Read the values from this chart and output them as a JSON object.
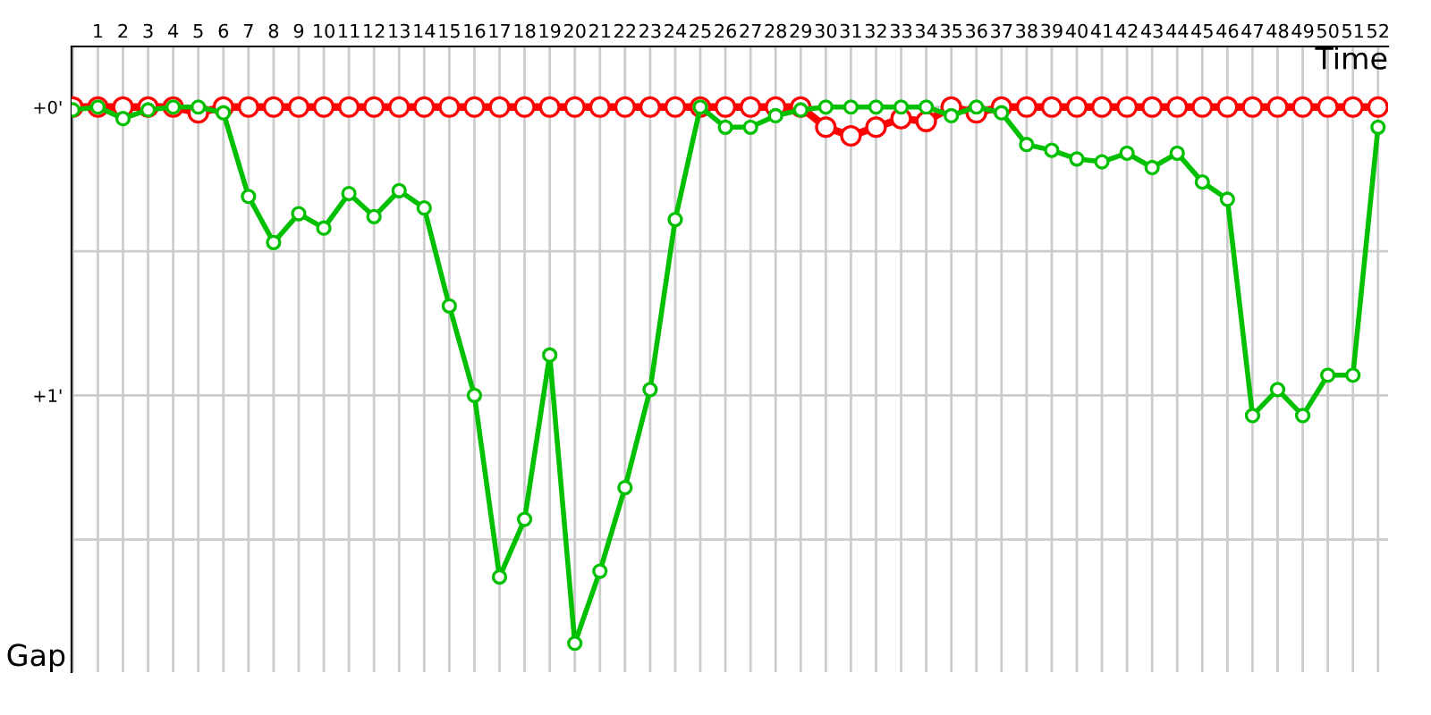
{
  "chart_data": {
    "type": "line",
    "xlabel": "Time",
    "ylabel": "Gap",
    "categories": [
      null,
      "1",
      "2",
      "3",
      "4",
      "5",
      "6",
      "7",
      "8",
      "9",
      "10",
      "11",
      "12",
      "13",
      "14",
      "15",
      "16",
      "17",
      "18",
      "19",
      "20",
      "21",
      "22",
      "23",
      "24",
      "25",
      "26",
      "27",
      "28",
      "29",
      "30",
      "31",
      "32",
      "33",
      "34",
      "35",
      "36",
      "37",
      "38",
      "39",
      "40",
      "41",
      "42",
      "43",
      "44",
      "45",
      "46",
      "47",
      "48",
      "49",
      "50",
      "51",
      "52"
    ],
    "series": [
      {
        "color": "#ff0000",
        "values": [
          0,
          0,
          0,
          0,
          0,
          0.02,
          0,
          0,
          0,
          0,
          0,
          0,
          0,
          0,
          0,
          0,
          0,
          0,
          0,
          0,
          0,
          0,
          0,
          0,
          0,
          0,
          0,
          0,
          0,
          0,
          0.07,
          0.1,
          0.07,
          0.04,
          0.05,
          0,
          0.02,
          0,
          0,
          0,
          0,
          0,
          0,
          0,
          0,
          0,
          0,
          0,
          0,
          0,
          0,
          0,
          0
        ]
      },
      {
        "color": "#00c000",
        "values": [
          0.01,
          0,
          0.04,
          0.01,
          0,
          0,
          0.02,
          0.31,
          0.47,
          0.37,
          0.42,
          0.3,
          0.38,
          0.29,
          0.35,
          0.69,
          1.0,
          1.63,
          1.43,
          0.86,
          1.86,
          1.61,
          1.32,
          0.98,
          0.39,
          0,
          0.07,
          0.07,
          0.03,
          0.01,
          0,
          0,
          0,
          0,
          0,
          0.03,
          0,
          0.02,
          0.13,
          0.15,
          0.18,
          0.19,
          0.16,
          0.21,
          0.16,
          0.26,
          0.32,
          1.07,
          0.98,
          1.07,
          0.93,
          0.93,
          0.07
        ]
      }
    ],
    "ylim": [
      1.96,
      -0.21
    ],
    "yticks": [
      {
        "value": 0,
        "label": "+0'"
      },
      {
        "value": 0.5,
        "label": null
      },
      {
        "value": 1,
        "label": "+1'"
      },
      {
        "value": 1.5,
        "label": null
      }
    ],
    "grid": true,
    "marker": "circle",
    "line_style": "solid"
  }
}
